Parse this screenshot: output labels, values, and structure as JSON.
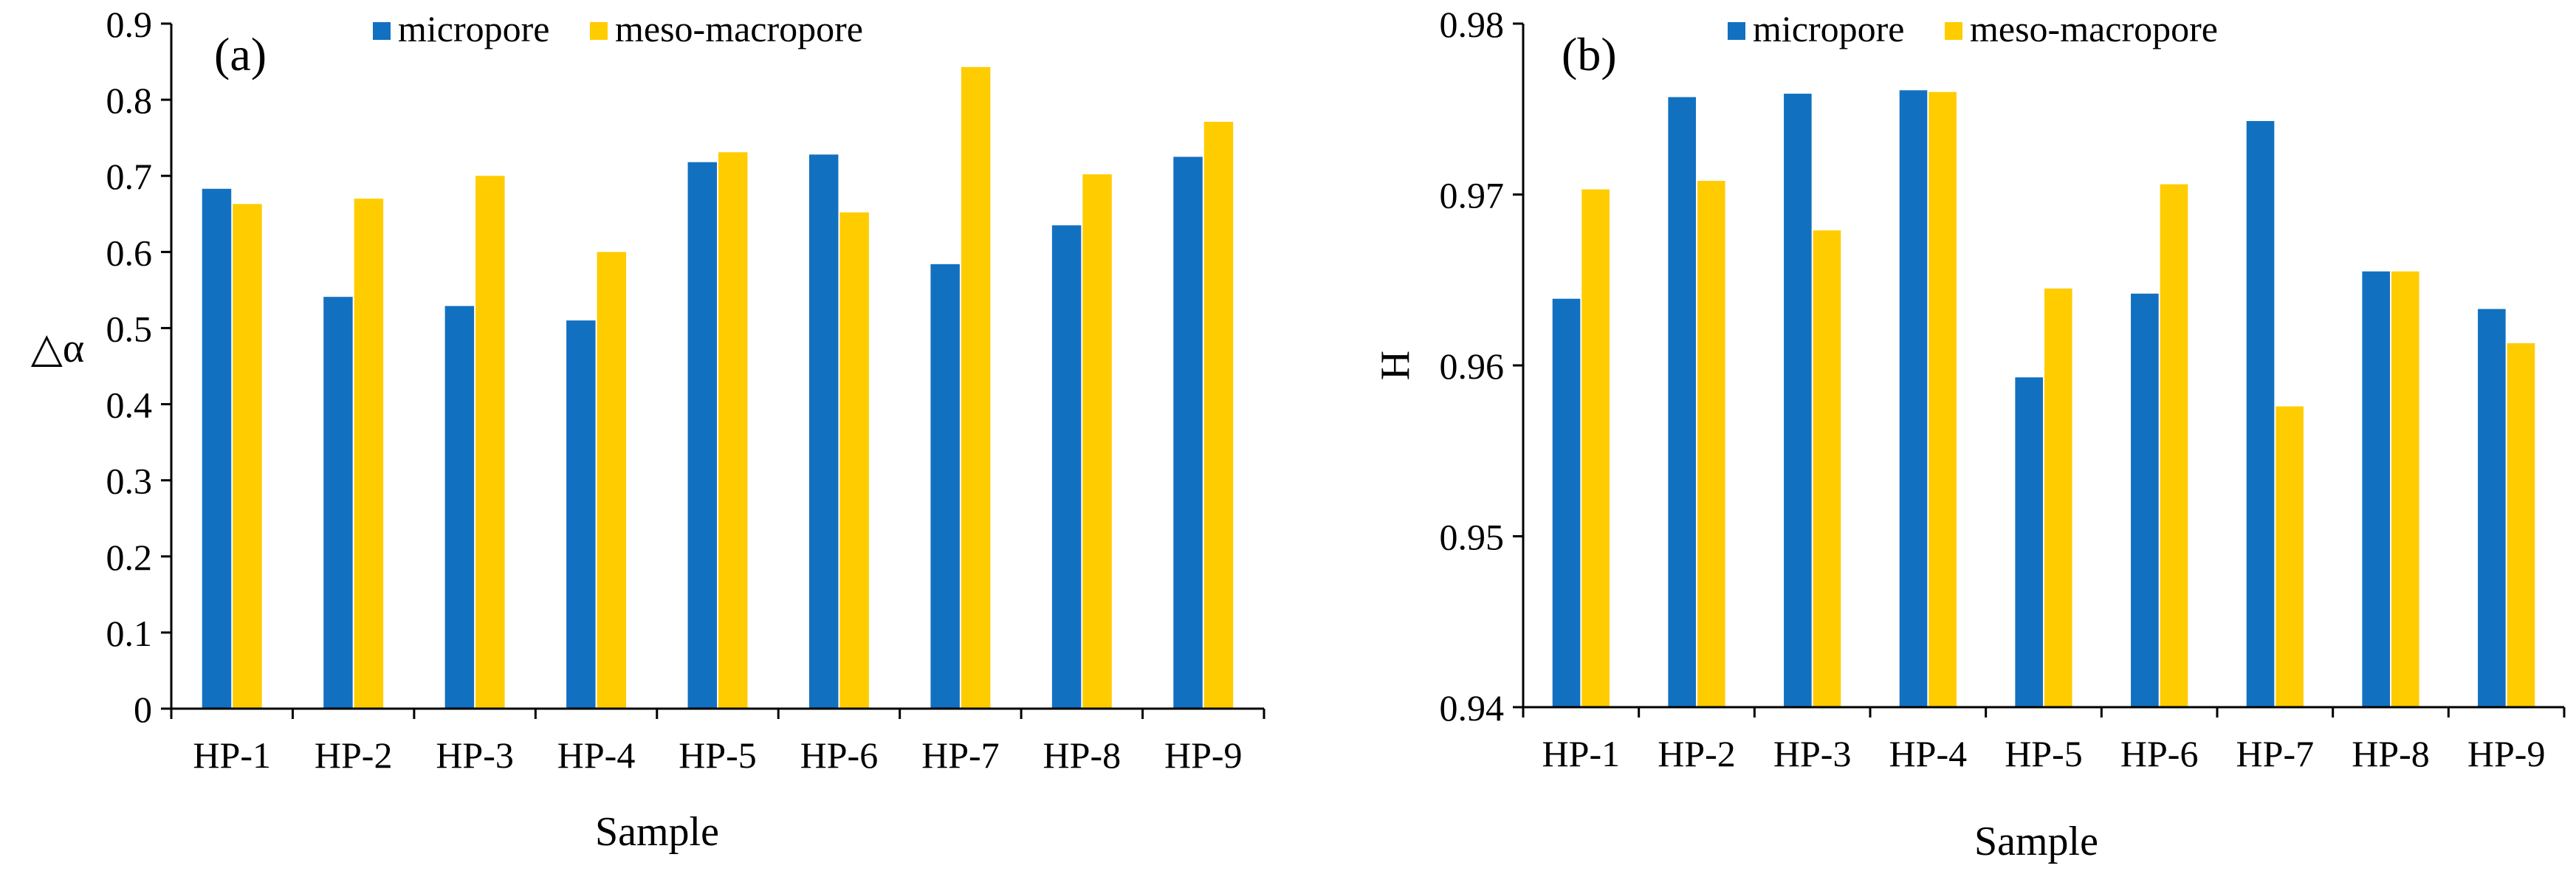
{
  "colors": {
    "micropore": "#1270C0",
    "meso_macropore": "#FFCC00",
    "axis": "#000000"
  },
  "chart_data": [
    {
      "type": "bar",
      "panel_label": "(a)",
      "title": "",
      "xlabel": "Sample",
      "ylabel": "△α",
      "categories": [
        "HP-1",
        "HP-2",
        "HP-3",
        "HP-4",
        "HP-5",
        "HP-6",
        "HP-7",
        "HP-8",
        "HP-9"
      ],
      "series": [
        {
          "name": "micropore",
          "values": [
            0.683,
            0.541,
            0.529,
            0.51,
            0.718,
            0.728,
            0.584,
            0.635,
            0.725
          ]
        },
        {
          "name": "meso-macropore",
          "values": [
            0.663,
            0.67,
            0.7,
            0.6,
            0.731,
            0.652,
            0.843,
            0.702,
            0.771
          ]
        }
      ],
      "ylim": [
        0,
        0.9
      ],
      "yticks": [
        "0",
        "0.1",
        "0.2",
        "0.3",
        "0.4",
        "0.5",
        "0.6",
        "0.7",
        "0.8",
        "0.9"
      ],
      "ytick_values": [
        0,
        0.1,
        0.2,
        0.3,
        0.4,
        0.5,
        0.6,
        0.7,
        0.8,
        0.9
      ],
      "legend": [
        "micropore",
        "meso-macropore"
      ],
      "legend_position": "top-center",
      "grid": false
    },
    {
      "type": "bar",
      "panel_label": "(b)",
      "title": "",
      "xlabel": "Sample",
      "ylabel": "H",
      "categories": [
        "HP-1",
        "HP-2",
        "HP-3",
        "HP-4",
        "HP-5",
        "HP-6",
        "HP-7",
        "HP-8",
        "HP-9"
      ],
      "series": [
        {
          "name": "micropore",
          "values": [
            0.9639,
            0.9757,
            0.9759,
            0.9761,
            0.9593,
            0.9642,
            0.9743,
            0.9655,
            0.9633
          ]
        },
        {
          "name": "meso-macropore",
          "values": [
            0.9703,
            0.9708,
            0.9679,
            0.976,
            0.9645,
            0.9706,
            0.9576,
            0.9655,
            0.9613
          ]
        }
      ],
      "ylim": [
        0.94,
        0.98
      ],
      "yticks": [
        "0.94",
        "0.95",
        "0.96",
        "0.97",
        "0.98"
      ],
      "ytick_values": [
        0.94,
        0.95,
        0.96,
        0.97,
        0.98
      ],
      "legend": [
        "micropore",
        "meso-macropore"
      ],
      "legend_position": "top-center",
      "grid": false
    }
  ]
}
